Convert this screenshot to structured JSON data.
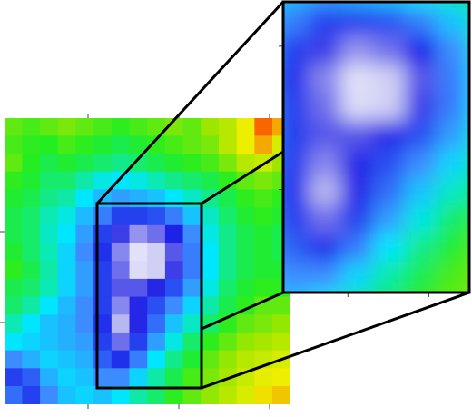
{
  "chart_data": {
    "type": "heatmap",
    "xlim": [
      -1.92,
      1.23
    ],
    "ylim": [
      1.25,
      -1.9
    ],
    "xticks": [
      -1,
      0,
      1
    ],
    "yticks": [
      0,
      -1
    ],
    "colorscale": [
      [
        0,
        "#ffffff"
      ],
      [
        0.12,
        "#b8b8f0"
      ],
      [
        0.25,
        "#1a1ae6"
      ],
      [
        0.4,
        "#3c8cff"
      ],
      [
        0.5,
        "#00e6ff"
      ],
      [
        0.65,
        "#22ee22"
      ],
      [
        0.75,
        "#9ee600"
      ],
      [
        0.85,
        "#eeee00"
      ],
      [
        1,
        "#ff2000"
      ]
    ],
    "z": [
      [
        0.7,
        0.68,
        0.7,
        0.72,
        0.7,
        0.68,
        0.66,
        0.68,
        0.7,
        0.72,
        0.7,
        0.75,
        0.78,
        0.85,
        0.95,
        0.9
      ],
      [
        0.68,
        0.66,
        0.65,
        0.68,
        0.66,
        0.64,
        0.62,
        0.64,
        0.66,
        0.68,
        0.7,
        0.72,
        0.78,
        0.85,
        0.9,
        0.82
      ],
      [
        0.7,
        0.65,
        0.62,
        0.64,
        0.62,
        0.6,
        0.58,
        0.6,
        0.62,
        0.64,
        0.66,
        0.68,
        0.72,
        0.78,
        0.8,
        0.75
      ],
      [
        0.66,
        0.64,
        0.6,
        0.6,
        0.56,
        0.52,
        0.5,
        0.52,
        0.55,
        0.58,
        0.6,
        0.62,
        0.66,
        0.7,
        0.72,
        0.7
      ],
      [
        0.64,
        0.62,
        0.58,
        0.56,
        0.5,
        0.45,
        0.42,
        0.44,
        0.46,
        0.5,
        0.54,
        0.58,
        0.62,
        0.66,
        0.68,
        0.66
      ],
      [
        0.62,
        0.6,
        0.55,
        0.52,
        0.45,
        0.38,
        0.3,
        0.3,
        0.32,
        0.38,
        0.46,
        0.54,
        0.6,
        0.64,
        0.66,
        0.64
      ],
      [
        0.62,
        0.6,
        0.54,
        0.5,
        0.42,
        0.3,
        0.22,
        0.15,
        0.18,
        0.26,
        0.4,
        0.52,
        0.58,
        0.62,
        0.64,
        0.62
      ],
      [
        0.64,
        0.6,
        0.55,
        0.48,
        0.4,
        0.28,
        0.16,
        0.05,
        0.08,
        0.2,
        0.38,
        0.5,
        0.58,
        0.62,
        0.64,
        0.62
      ],
      [
        0.66,
        0.62,
        0.56,
        0.48,
        0.42,
        0.3,
        0.18,
        0.06,
        0.08,
        0.22,
        0.38,
        0.5,
        0.58,
        0.62,
        0.64,
        0.64
      ],
      [
        0.62,
        0.6,
        0.55,
        0.48,
        0.42,
        0.3,
        0.2,
        0.2,
        0.24,
        0.32,
        0.42,
        0.52,
        0.6,
        0.64,
        0.66,
        0.66
      ],
      [
        0.6,
        0.56,
        0.5,
        0.45,
        0.4,
        0.3,
        0.16,
        0.24,
        0.32,
        0.4,
        0.48,
        0.56,
        0.62,
        0.66,
        0.7,
        0.7
      ],
      [
        0.55,
        0.5,
        0.46,
        0.44,
        0.4,
        0.28,
        0.12,
        0.24,
        0.36,
        0.46,
        0.54,
        0.6,
        0.66,
        0.7,
        0.72,
        0.74
      ],
      [
        0.5,
        0.48,
        0.46,
        0.44,
        0.42,
        0.3,
        0.18,
        0.3,
        0.42,
        0.52,
        0.6,
        0.66,
        0.7,
        0.74,
        0.76,
        0.78
      ],
      [
        0.4,
        0.44,
        0.48,
        0.46,
        0.44,
        0.34,
        0.28,
        0.38,
        0.5,
        0.58,
        0.64,
        0.7,
        0.74,
        0.78,
        0.8,
        0.82
      ],
      [
        0.3,
        0.34,
        0.44,
        0.48,
        0.46,
        0.4,
        0.4,
        0.48,
        0.56,
        0.62,
        0.68,
        0.72,
        0.76,
        0.8,
        0.84,
        0.85
      ],
      [
        0.36,
        0.3,
        0.4,
        0.46,
        0.48,
        0.46,
        0.5,
        0.56,
        0.6,
        0.66,
        0.7,
        0.74,
        0.78,
        0.82,
        0.86,
        0.88
      ]
    ],
    "inset": {
      "xlim": [
        -0.9,
        0.25
      ],
      "ylim": [
        0.31,
        -1.72
      ],
      "xticks": [
        -0.5,
        0
      ],
      "yticks": [
        0,
        -1
      ]
    }
  }
}
